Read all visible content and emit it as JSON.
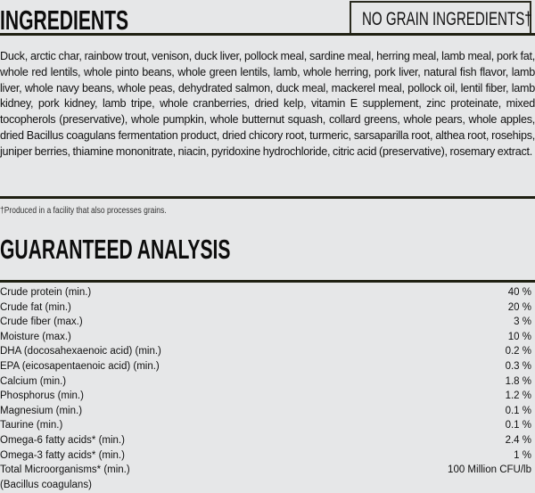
{
  "ingredients": {
    "title": "INGREDIENTS",
    "badge": "NO GRAIN INGREDIENTS†",
    "text": "Duck, arctic char, rainbow trout, venison, duck liver, pollock meal, sardine meal, herring meal, lamb meal, pork fat, whole red lentils, whole pinto beans, whole green lentils, lamb, whole herring, pork liver, natural fish flavor, lamb liver, whole navy beans, whole peas, dehydrated salmon, duck meal, mackerel meal, pollock oil, lentil fiber, lamb kidney, pork kidney, lamb tripe, whole cranberries, dried kelp, vitamin E supplement, zinc proteinate, mixed tocopherols (preservative), whole pumpkin, whole butternut squash, collard greens, whole pears, whole apples, dried Bacillus coagulans fermentation product, dried chicory root, turmeric, sarsaparilla root, althea root, rosehips, juniper berries, thiamine mononitrate, niacin, pyridoxine hydrochloride, citric acid (preservative), rosemary extract.",
    "footnote": "†Produced in a facility that also processes grains."
  },
  "analysis": {
    "title": "GUARANTEED ANALYSIS",
    "rows": [
      {
        "label": "Crude protein (min.)",
        "value": "40 %"
      },
      {
        "label": "Crude fat (min.)",
        "value": "20 %"
      },
      {
        "label": "Crude fiber (max.)",
        "value": "3 %"
      },
      {
        "label": "Moisture (max.)",
        "value": "10 %"
      },
      {
        "label": "DHA (docosahexaenoic acid) (min.)",
        "value": "0.2 %"
      },
      {
        "label": "EPA (eicosapentaenoic acid) (min.)",
        "value": "0.3 %"
      },
      {
        "label": "Calcium (min.)",
        "value": "1.8 %"
      },
      {
        "label": "Phosphorus (min.)",
        "value": "1.2 %"
      },
      {
        "label": "Magnesium (min.)",
        "value": "0.1 %"
      },
      {
        "label": "Taurine (min.)",
        "value": "0.1 %"
      },
      {
        "label": "Omega-6 fatty acids* (min.)",
        "value": "2.4 %"
      },
      {
        "label": "Omega-3 fatty acids* (min.)",
        "value": "1 %"
      },
      {
        "label": "Total Microorganisms* (min.)",
        "value": "100 Million CFU/lb"
      },
      {
        "label": "(Bacillus coagulans)",
        "value": ""
      }
    ]
  }
}
